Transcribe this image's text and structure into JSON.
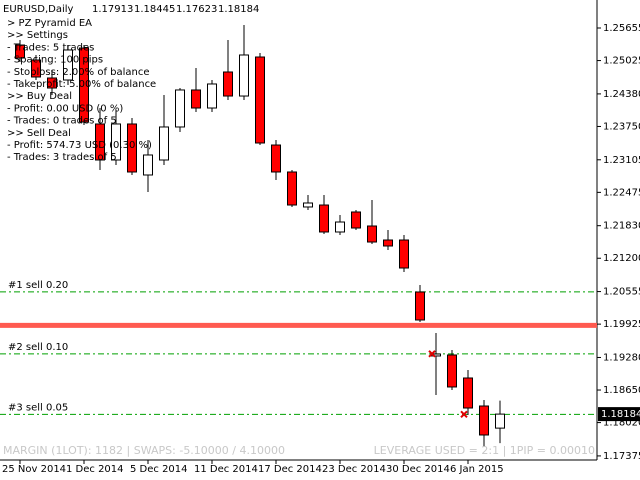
{
  "chart_data": {
    "type": "candlestick",
    "title": "EURUSD,Daily",
    "categories": [
      "25 Nov 2014",
      null,
      null,
      null,
      "1 Dec 2014",
      null,
      null,
      null,
      "5 Dec 2014",
      null,
      null,
      null,
      "11 Dec 2014",
      null,
      null,
      null,
      "17 Dec 2014",
      null,
      null,
      null,
      "23 Dec 2014",
      null,
      null,
      null,
      "30 Dec 2014",
      null,
      null,
      null,
      "6 Jan 2015",
      null,
      null
    ],
    "open": [
      1.25326,
      1.25036,
      1.24688,
      1.24649,
      1.25268,
      1.23798,
      1.23101,
      1.23798,
      1.22811,
      1.23101,
      1.2374,
      1.24456,
      1.24107,
      1.24804,
      1.24339,
      1.25094,
      1.23391,
      1.22869,
      1.22192,
      1.2223,
      1.21708,
      1.22095,
      1.21824,
      1.21553,
      1.21553,
      1.20547,
      1.19309,
      1.19328,
      1.18883,
      1.18341,
      1.17913
    ],
    "high": [
      1.25423,
      1.25133,
      1.24843,
      1.25326,
      1.25326,
      1.24107,
      1.24069,
      1.23914,
      1.23488,
      1.24359,
      1.24494,
      1.24881,
      1.24649,
      1.25423,
      1.25713,
      1.25171,
      1.23488,
      1.22908,
      1.22424,
      1.22424,
      1.22037,
      1.22134,
      1.22327,
      1.21747,
      1.2165,
      1.20682,
      1.19753,
      1.19425,
      1.19038,
      1.18457,
      1.18445
    ],
    "low": [
      1.24997,
      1.24649,
      1.24359,
      1.24552,
      1.23778,
      1.22908,
      1.23004,
      1.22811,
      1.22482,
      1.23004,
      1.23643,
      1.2403,
      1.2403,
      1.24262,
      1.24262,
      1.23391,
      1.22714,
      1.22192,
      1.22134,
      1.21669,
      1.2165,
      1.21747,
      1.21476,
      1.2136,
      1.20934,
      1.19966,
      1.18554,
      1.18651,
      1.18167,
      1.17548,
      1.17623
    ],
    "close": [
      1.25075,
      1.24707,
      1.24494,
      1.2523,
      1.23836,
      1.23101,
      1.23798,
      1.22869,
      1.23198,
      1.2374,
      1.24456,
      1.24107,
      1.24572,
      1.24339,
      1.25133,
      1.2343,
      1.22869,
      1.2223,
      1.22269,
      1.21708,
      1.21901,
      1.21785,
      1.21514,
      1.21437,
      1.21011,
      1.20005,
      1.19347,
      1.18709,
      1.18302,
      1.1778,
      1.18184
    ],
    "bull_color": "#ffffff",
    "bear_color": "#ff0000",
    "ylim": [
      1.17296,
      1.26197
    ],
    "yticks": [
      1.25655,
      1.25025,
      {
        "value": 1.2438,
        "label": "1.24380"
      },
      {
        "value": 1.2375,
        "label": "1.23750"
      },
      1.23105,
      1.22475,
      {
        "value": 1.2183,
        "label": "1.21830"
      },
      {
        "value": 1.212,
        "label": "1.21200"
      },
      1.20555,
      1.19925,
      {
        "value": 1.1928,
        "label": "1.19280"
      },
      {
        "value": 1.1865,
        "label": "1.18650"
      },
      {
        "value": 1.1802,
        "label": "1.18020"
      },
      1.17375
    ],
    "levels": [
      {
        "label": "#1 sell 0.20",
        "value": 1.2055
      },
      {
        "label": "#2 sell 0.10",
        "value": 1.1935
      },
      {
        "label": "#3 sell 0.05",
        "value": 1.1818
      }
    ],
    "level_color": "#00a000",
    "price_line": 1.199,
    "price_line_color": "#ff5a50",
    "sell_arrows": [
      {
        "index": 26,
        "price": 1.1935
      },
      {
        "index": 28,
        "price": 1.1818
      }
    ],
    "info": [
      "> PZ Pyramid EA",
      ">> Settings",
      "- Trades: 5 trades",
      "- Spacing: 100 pips",
      "- Stoploss: 2.00% of balance",
      "- Takeprofit: 5.00% of balance",
      ">> Buy Deal",
      "- Profit: 0.00 USD (0 %)",
      "- Trades: 0 trades of 5",
      ">> Sell Deal",
      "- Profit: 574.73 USD (0.30 %)",
      "- Trades: 3 trades of 5"
    ],
    "footer_left": "MARGIN (1LOT): 1182 | SWAPS: -5.10000 / 4.10000",
    "footer_right": "LEVERAGE USED = 2:1 | 1PIP = 0.00010"
  }
}
